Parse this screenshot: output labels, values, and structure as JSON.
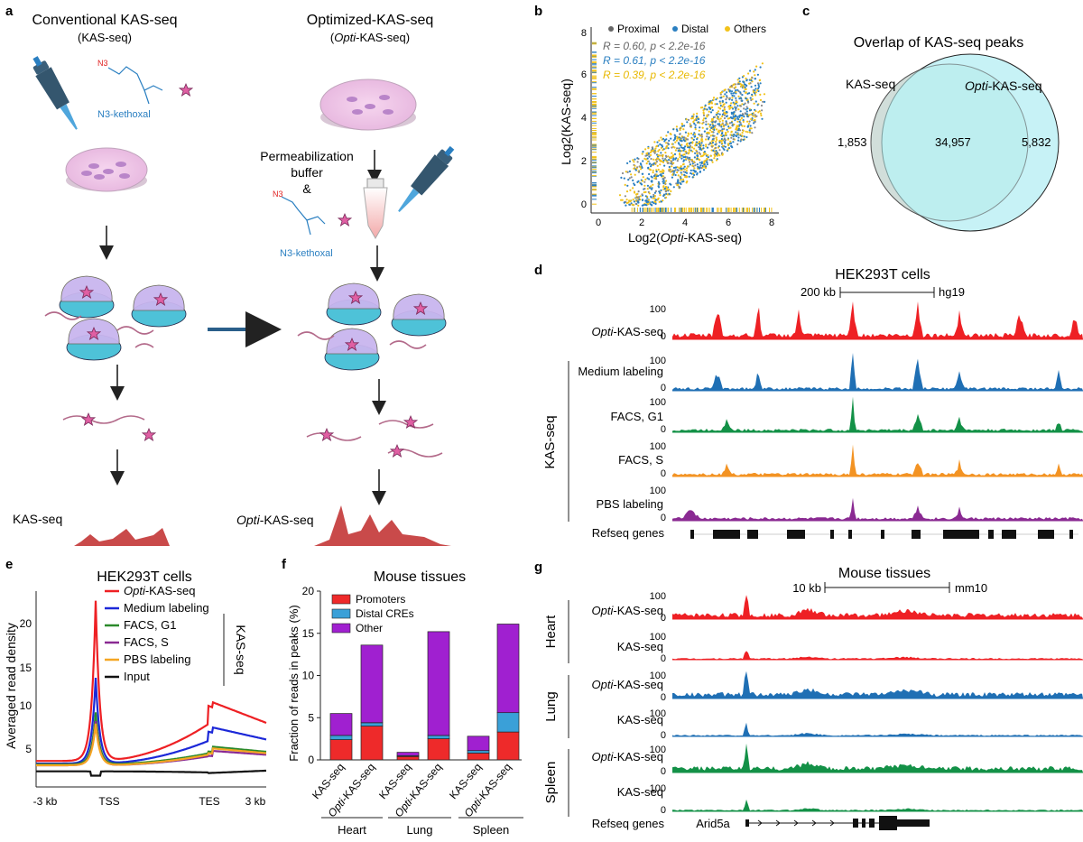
{
  "panel_a": {
    "label": "a",
    "conv_title": "Conventional KAS-seq",
    "conv_subtitle": "(KAS-seq)",
    "opt_title": "Optimized-KAS-seq",
    "opt_subtitle_pre": "(",
    "opt_subtitle_it": "Opti",
    "opt_subtitle_post": "-KAS-seq)",
    "reagent_1": "N3-kethoxal",
    "reagent_2": "N3-kethoxal",
    "perm_line1": "Permeabilization",
    "perm_line2": "buffer",
    "perm_line3": "&",
    "out_conv": "KAS-seq",
    "out_opt_it": "Opti",
    "out_opt_rest": "-KAS-seq"
  },
  "panel_b": {
    "label": "b",
    "legend": [
      "Proximal",
      "Distal",
      "Others"
    ],
    "stats": [
      {
        "r": "R = 0.60,",
        "p": "p < 2.2e-16"
      },
      {
        "r": "R = 0.61,",
        "p": "p < 2.2e-16"
      },
      {
        "r": "R = 0.39,",
        "p": "p < 2.2e-16"
      }
    ],
    "ylabel": "Log2(KAS-seq)",
    "xlabel_pre": "Log2(",
    "xlabel_it": "Opti",
    "xlabel_post": "-KAS-seq)",
    "xticks": [
      "0",
      "2",
      "4",
      "6",
      "8"
    ],
    "yticks": [
      "0",
      "2",
      "4",
      "6",
      "8"
    ]
  },
  "panel_c": {
    "label": "c",
    "title": "Overlap of KAS-seq peaks",
    "left_set": "KAS-seq",
    "right_set_it": "Opti",
    "right_set_rest": "-KAS-seq",
    "left_only": "1,853",
    "both": "34,957",
    "right_only": "5,832"
  },
  "panel_d": {
    "label": "d",
    "title": "HEK293T cells",
    "scale": "200 kb",
    "genome": "hg19",
    "tracks": [
      {
        "name_it": "Opti",
        "name": "-KAS-seq",
        "max": "100",
        "min": "0",
        "color": "#ee2024"
      },
      {
        "name_it": "",
        "name": "Medium labeling",
        "max": "100",
        "min": "0",
        "color": "#1f6fb4"
      },
      {
        "name_it": "",
        "name": "FACS, G1",
        "max": "100",
        "min": "0",
        "color": "#139147"
      },
      {
        "name_it": "",
        "name": "FACS, S",
        "max": "100",
        "min": "0",
        "color": "#f39323"
      },
      {
        "name_it": "",
        "name": "PBS labeling",
        "max": "100",
        "min": "0",
        "color": "#8a2a92"
      }
    ],
    "group_label": "KAS-seq",
    "genes_label": "Refseq genes"
  },
  "panel_e": {
    "label": "e",
    "title": "HEK293T cells",
    "ylabel": "Averaged read density",
    "xticks": [
      "-3 kb",
      "TSS",
      "TES",
      "3 kb"
    ],
    "yticks": [
      "5",
      "10",
      "15",
      "20"
    ],
    "legend": [
      {
        "name_it": "Opti",
        "name": "-KAS-seq",
        "color": "#ee2024"
      },
      {
        "name_it": "",
        "name": "Medium labeling",
        "color": "#1c28d8"
      },
      {
        "name_it": "",
        "name": "FACS, G1",
        "color": "#2b8a2b"
      },
      {
        "name_it": "",
        "name": "FACS, S",
        "color": "#8a2a92"
      },
      {
        "name_it": "",
        "name": "PBS labeling",
        "color": "#f5a623"
      },
      {
        "name_it": "",
        "name": "Input",
        "color": "#111111"
      }
    ],
    "bracket_label": "KAS-seq"
  },
  "panel_f": {
    "label": "f",
    "title": "Mouse tissues",
    "ylabel": "Fraction of reads in peaks (%)",
    "legend": [
      "Promoters",
      "Distal CREs",
      "Other"
    ],
    "tissues": [
      "Heart",
      "Lung",
      "Spleen"
    ]
  },
  "chart_data": {
    "type": "bar",
    "stacked": true,
    "title": "Mouse tissues",
    "ylabel": "Fraction of reads in peaks (%)",
    "ylim": [
      0,
      20
    ],
    "yticks": [
      0,
      5,
      10,
      15,
      20
    ],
    "categories": [
      "KAS-seq",
      "Opti-KAS-seq",
      "KAS-seq",
      "Opti-KAS-seq",
      "KAS-seq",
      "Opti-KAS-seq"
    ],
    "category_it": [
      "",
      "Opti",
      "",
      "Opti",
      "",
      "Opti"
    ],
    "category_rest": [
      "KAS-seq",
      "-KAS-seq",
      "KAS-seq",
      "-KAS-seq",
      "KAS-seq",
      "-KAS-seq"
    ],
    "groups": [
      "Heart",
      "Heart",
      "Lung",
      "Lung",
      "Spleen",
      "Spleen"
    ],
    "series": [
      {
        "name": "Promoters",
        "color": "#ee2a2a",
        "values": [
          2.4,
          4.0,
          0.4,
          2.5,
          0.8,
          3.3
        ]
      },
      {
        "name": "Distal CREs",
        "color": "#3aa0d8",
        "values": [
          0.5,
          0.4,
          0.1,
          0.4,
          0.3,
          2.3
        ]
      },
      {
        "name": "Other",
        "color": "#a020d0",
        "values": [
          2.6,
          9.2,
          0.4,
          12.3,
          1.7,
          10.5
        ]
      }
    ]
  },
  "panel_g": {
    "label": "g",
    "title": "Mouse tissues",
    "scale": "10 kb",
    "genome": "mm10",
    "tracks": [
      {
        "name_it": "Opti",
        "name": "-KAS-seq",
        "max": "100",
        "min": "0",
        "color": "#ee2024"
      },
      {
        "name_it": "",
        "name": "KAS-seq",
        "max": "100",
        "min": "0",
        "color": "#ee2024"
      },
      {
        "name_it": "Opti",
        "name": "-KAS-seq",
        "max": "100",
        "min": "0",
        "color": "#1f6fb4"
      },
      {
        "name_it": "",
        "name": "KAS-seq",
        "max": "100",
        "min": "0",
        "color": "#1f6fb4"
      },
      {
        "name_it": "Opti",
        "name": "-KAS-seq",
        "max": "100",
        "min": "0",
        "color": "#139147"
      },
      {
        "name_it": "",
        "name": "KAS-seq",
        "max": "100",
        "min": "0",
        "color": "#139147"
      }
    ],
    "groups": [
      "Heart",
      "Lung",
      "Spleen"
    ],
    "genes_label": "Refseq genes",
    "gene": "Arid5a"
  }
}
